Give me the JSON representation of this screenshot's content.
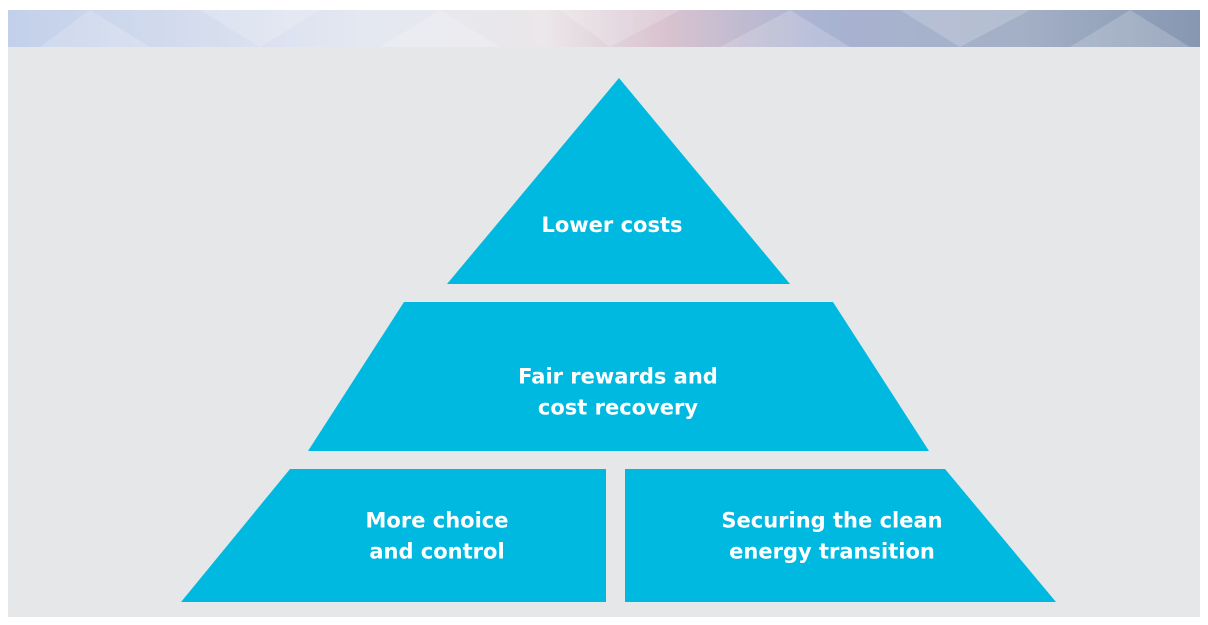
{
  "nodes": [
    {
      "lines": [
        "Lower costs"
      ]
    },
    {
      "lines": [
        "Fair rewards and",
        "cost recovery"
      ]
    },
    {
      "lines": [
        "More choice",
        "and control"
      ]
    },
    {
      "lines": [
        "Securing the clean",
        "energy transition"
      ]
    }
  ]
}
